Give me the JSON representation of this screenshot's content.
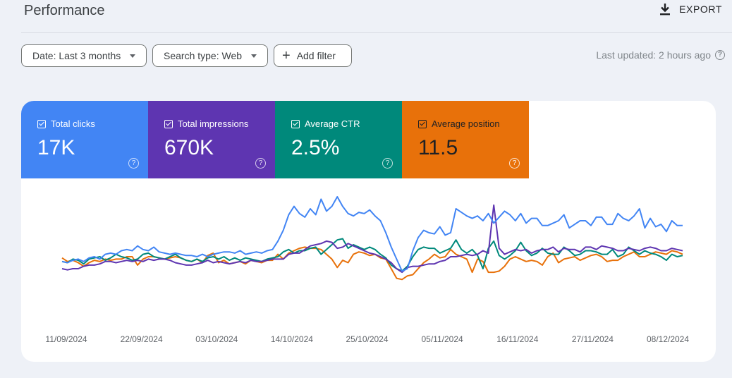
{
  "header": {
    "title": "Performance",
    "export_label": "EXPORT"
  },
  "toolbar": {
    "date_filter": "Date: Last 3 months",
    "search_type": "Search type: Web",
    "add_filter": "Add filter",
    "last_updated": "Last updated: 2 hours ago"
  },
  "metrics": [
    {
      "label": "Total clicks",
      "value": "17K",
      "color": "#4285f4",
      "checked": true
    },
    {
      "label": "Total impressions",
      "value": "670K",
      "color": "#5e35b1",
      "checked": true
    },
    {
      "label": "Average CTR",
      "value": "2.5%",
      "color": "#00897b",
      "checked": true
    },
    {
      "label": "Average position",
      "value": "11.5",
      "color": "#e8710a",
      "checked": true
    }
  ],
  "chart_data": {
    "type": "line",
    "x_tick_labels": [
      "11/09/2024",
      "22/09/2024",
      "03/10/2024",
      "14/10/2024",
      "25/10/2024",
      "05/11/2024",
      "16/11/2024",
      "27/11/2024",
      "08/12/2024"
    ],
    "y_axis": "hidden, independent relative scale per series",
    "series": [
      {
        "name": "Total clicks",
        "color": "#4285f4",
        "values": [
          0.46,
          0.45,
          0.47,
          0.48,
          0.46,
          0.49,
          0.5,
          0.48,
          0.52,
          0.53,
          0.52,
          0.55,
          0.56,
          0.55,
          0.59,
          0.56,
          0.55,
          0.58,
          0.54,
          0.53,
          0.52,
          0.53,
          0.52,
          0.51,
          0.51,
          0.5,
          0.52,
          0.5,
          0.52,
          0.53,
          0.54,
          0.54,
          0.53,
          0.55,
          0.52,
          0.53,
          0.54,
          0.53,
          0.55,
          0.56,
          0.63,
          0.72,
          0.85,
          0.92,
          0.86,
          0.83,
          0.9,
          0.85,
          0.98,
          0.88,
          0.92,
          1.0,
          0.92,
          0.86,
          0.84,
          0.87,
          0.86,
          0.89,
          0.84,
          0.8,
          0.7,
          0.58,
          0.48,
          0.38,
          0.4,
          0.55,
          0.66,
          0.72,
          0.7,
          0.69,
          0.75,
          0.68,
          0.7,
          0.9,
          0.87,
          0.84,
          0.82,
          0.84,
          0.8,
          0.86,
          0.78,
          0.83,
          0.88,
          0.85,
          0.8,
          0.86,
          0.78,
          0.82,
          0.82,
          0.76,
          0.76,
          0.78,
          0.8,
          0.85,
          0.74,
          0.77,
          0.8,
          0.8,
          0.76,
          0.83,
          0.83,
          0.77,
          0.77,
          0.86,
          0.82,
          0.8,
          0.84,
          0.9,
          0.74,
          0.82,
          0.75,
          0.77,
          0.71,
          0.8,
          0.76,
          0.76
        ]
      },
      {
        "name": "Total impressions",
        "color": "#5e35b1",
        "values": [
          0.4,
          0.39,
          0.4,
          0.4,
          0.42,
          0.43,
          0.43,
          0.44,
          0.46,
          0.46,
          0.45,
          0.46,
          0.47,
          0.46,
          0.47,
          0.46,
          0.48,
          0.47,
          0.48,
          0.48,
          0.47,
          0.45,
          0.44,
          0.43,
          0.43,
          0.44,
          0.45,
          0.47,
          0.45,
          0.46,
          0.45,
          0.44,
          0.45,
          0.46,
          0.45,
          0.47,
          0.46,
          0.46,
          0.47,
          0.48,
          0.48,
          0.48,
          0.52,
          0.53,
          0.53,
          0.56,
          0.59,
          0.6,
          0.61,
          0.63,
          0.62,
          0.57,
          0.58,
          0.61,
          0.59,
          0.57,
          0.55,
          0.53,
          0.52,
          0.5,
          0.48,
          0.45,
          0.4,
          0.37,
          0.41,
          0.42,
          0.42,
          0.43,
          0.44,
          0.44,
          0.46,
          0.47,
          0.5,
          0.5,
          0.51,
          0.52,
          0.51,
          0.52,
          0.55,
          0.53,
          0.93,
          0.57,
          0.52,
          0.54,
          0.56,
          0.55,
          0.56,
          0.53,
          0.55,
          0.56,
          0.56,
          0.58,
          0.54,
          0.57,
          0.56,
          0.56,
          0.54,
          0.58,
          0.58,
          0.56,
          0.59,
          0.58,
          0.57,
          0.55,
          0.55,
          0.57,
          0.56,
          0.55,
          0.57,
          0.58,
          0.57,
          0.55,
          0.55,
          0.57,
          0.56,
          0.55
        ]
      },
      {
        "name": "Average CTR",
        "color": "#00897b",
        "values": [
          0.46,
          0.45,
          0.48,
          0.47,
          0.44,
          0.48,
          0.49,
          0.5,
          0.47,
          0.49,
          0.52,
          0.5,
          0.49,
          0.47,
          0.48,
          0.52,
          0.53,
          0.5,
          0.49,
          0.48,
          0.5,
          0.52,
          0.49,
          0.47,
          0.46,
          0.48,
          0.46,
          0.49,
          0.5,
          0.48,
          0.5,
          0.47,
          0.49,
          0.47,
          0.49,
          0.48,
          0.47,
          0.46,
          0.48,
          0.49,
          0.5,
          0.54,
          0.56,
          0.53,
          0.55,
          0.55,
          0.57,
          0.58,
          0.52,
          0.56,
          0.6,
          0.64,
          0.65,
          0.57,
          0.6,
          0.58,
          0.56,
          0.58,
          0.56,
          0.52,
          0.49,
          0.43,
          0.4,
          0.38,
          0.42,
          0.5,
          0.56,
          0.58,
          0.57,
          0.57,
          0.53,
          0.55,
          0.57,
          0.64,
          0.56,
          0.53,
          0.56,
          0.51,
          0.4,
          0.57,
          0.63,
          0.51,
          0.48,
          0.51,
          0.55,
          0.62,
          0.55,
          0.51,
          0.53,
          0.57,
          0.53,
          0.52,
          0.52,
          0.58,
          0.55,
          0.51,
          0.52,
          0.55,
          0.55,
          0.54,
          0.52,
          0.52,
          0.56,
          0.5,
          0.52,
          0.58,
          0.55,
          0.52,
          0.55,
          0.53,
          0.52,
          0.5,
          0.47,
          0.52,
          0.5,
          0.51
        ]
      },
      {
        "name": "Average position",
        "color": "#e8710a",
        "values": [
          0.49,
          0.46,
          0.47,
          0.45,
          0.42,
          0.45,
          0.47,
          0.46,
          0.48,
          0.47,
          0.48,
          0.48,
          0.5,
          0.5,
          0.43,
          0.48,
          0.5,
          0.5,
          0.49,
          0.48,
          0.49,
          0.5,
          0.49,
          0.47,
          0.46,
          0.48,
          0.45,
          0.51,
          0.53,
          0.45,
          0.47,
          0.44,
          0.45,
          0.46,
          0.44,
          0.47,
          0.46,
          0.45,
          0.47,
          0.47,
          0.52,
          0.48,
          0.53,
          0.55,
          0.57,
          0.58,
          0.57,
          0.57,
          0.56,
          0.52,
          0.48,
          0.41,
          0.47,
          0.45,
          0.52,
          0.54,
          0.53,
          0.51,
          0.52,
          0.49,
          0.48,
          0.4,
          0.32,
          0.31,
          0.34,
          0.35,
          0.4,
          0.45,
          0.48,
          0.52,
          0.49,
          0.5,
          0.56,
          0.52,
          0.5,
          0.48,
          0.37,
          0.48,
          0.46,
          0.37,
          0.37,
          0.38,
          0.42,
          0.48,
          0.5,
          0.48,
          0.46,
          0.47,
          0.46,
          0.43,
          0.5,
          0.53,
          0.45,
          0.48,
          0.49,
          0.5,
          0.47,
          0.49,
          0.51,
          0.52,
          0.5,
          0.46,
          0.47,
          0.47,
          0.5,
          0.52,
          0.54,
          0.5,
          0.5,
          0.52,
          0.54,
          0.53,
          0.52,
          0.55,
          0.54,
          0.52
        ]
      }
    ]
  }
}
